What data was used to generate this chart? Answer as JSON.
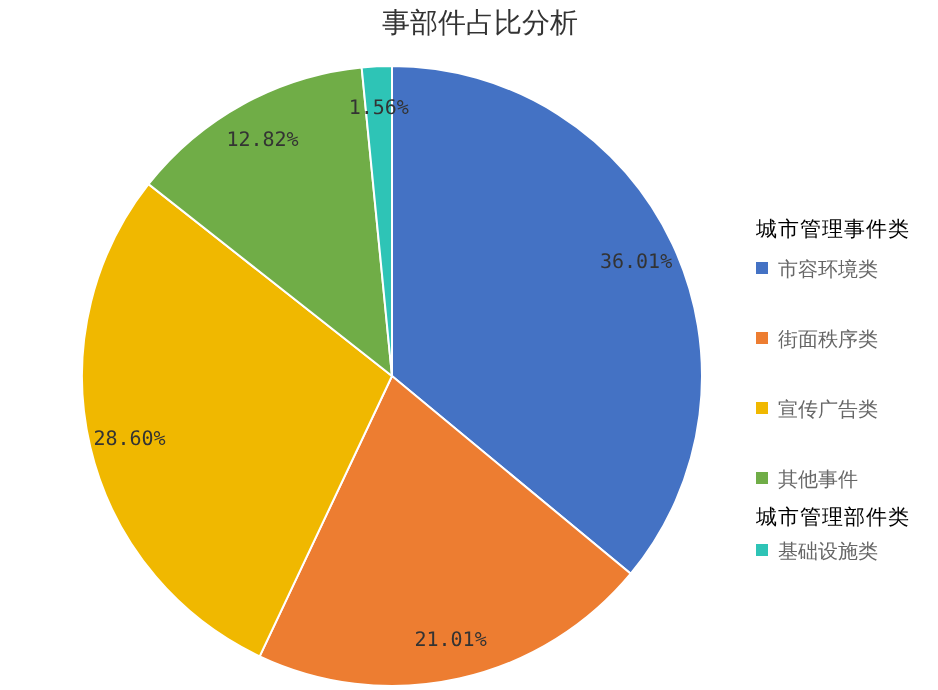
{
  "chart_data": {
    "type": "pie",
    "title": "事部件占比分析",
    "legend_title": "城市管理事件类",
    "annotations": [
      "城市管理部件类"
    ],
    "legend": "right",
    "categories": [
      "市容环境类",
      "街面秩序类",
      "宣传广告类",
      "其他事件",
      "基础设施类"
    ],
    "values": [
      36.01,
      21.01,
      28.6,
      12.82,
      1.56
    ],
    "value_labels": [
      "36.01%",
      "21.01%",
      "28.60%",
      "12.82%",
      "1.56%"
    ],
    "colors": [
      "#4472c4",
      "#ed7d31",
      "#f0b800",
      "#70ad47",
      "#2ec4b6"
    ]
  }
}
